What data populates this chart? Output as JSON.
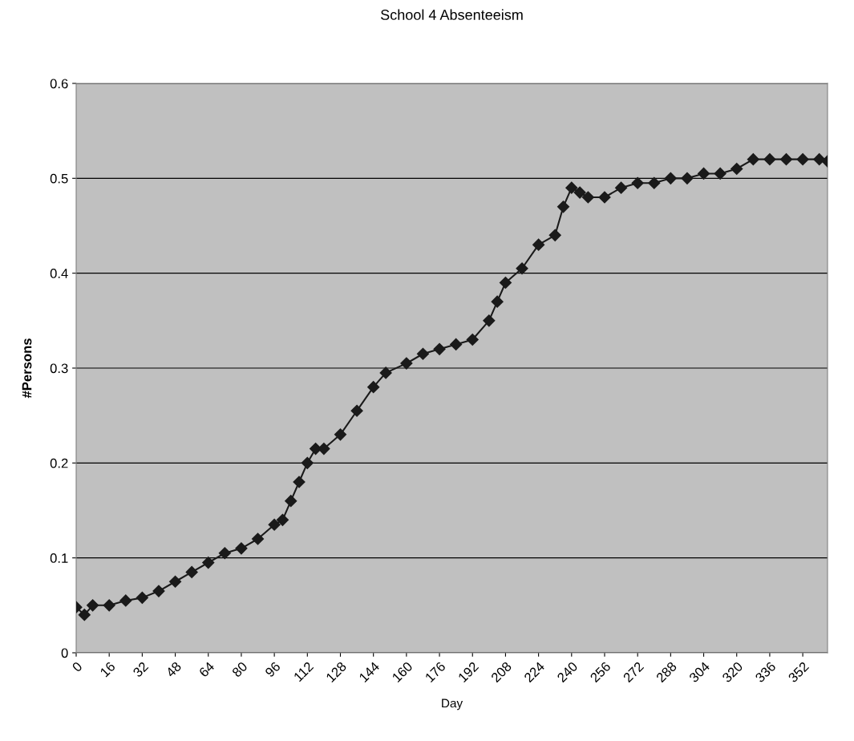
{
  "chart_data": {
    "type": "line",
    "title": "School 4 Absenteeism",
    "xlabel": "Day",
    "ylabel": "#Persons",
    "xlim": [
      0,
      364
    ],
    "xticks": [
      0,
      16,
      32,
      48,
      64,
      80,
      96,
      112,
      128,
      144,
      160,
      176,
      192,
      208,
      224,
      240,
      256,
      272,
      288,
      304,
      320,
      336,
      352
    ],
    "ylim": [
      0,
      0.6
    ],
    "yticks": [
      0,
      0.1,
      0.2,
      0.3,
      0.4,
      0.5,
      0.6
    ],
    "grid": "y",
    "marker": "diamond",
    "line_style": "solid",
    "series": [
      {
        "color": "#1a1a1a",
        "x": [
          0,
          4,
          8,
          16,
          24,
          32,
          40,
          48,
          56,
          64,
          72,
          80,
          88,
          96,
          100,
          104,
          108,
          112,
          116,
          120,
          128,
          136,
          144,
          150,
          160,
          168,
          176,
          184,
          192,
          200,
          204,
          208,
          216,
          224,
          232,
          236,
          240,
          244,
          248,
          256,
          264,
          272,
          280,
          288,
          296,
          304,
          312,
          320,
          328,
          336,
          344,
          352,
          360,
          364
        ],
        "values": [
          0.048,
          0.04,
          0.05,
          0.05,
          0.055,
          0.058,
          0.065,
          0.075,
          0.085,
          0.095,
          0.105,
          0.11,
          0.12,
          0.135,
          0.14,
          0.16,
          0.18,
          0.2,
          0.215,
          0.215,
          0.23,
          0.255,
          0.28,
          0.295,
          0.305,
          0.315,
          0.32,
          0.325,
          0.33,
          0.35,
          0.37,
          0.39,
          0.405,
          0.43,
          0.44,
          0.47,
          0.49,
          0.485,
          0.48,
          0.48,
          0.49,
          0.495,
          0.495,
          0.5,
          0.5,
          0.505,
          0.505,
          0.51,
          0.52,
          0.52,
          0.52,
          0.52,
          0.52,
          0.518
        ]
      }
    ]
  }
}
